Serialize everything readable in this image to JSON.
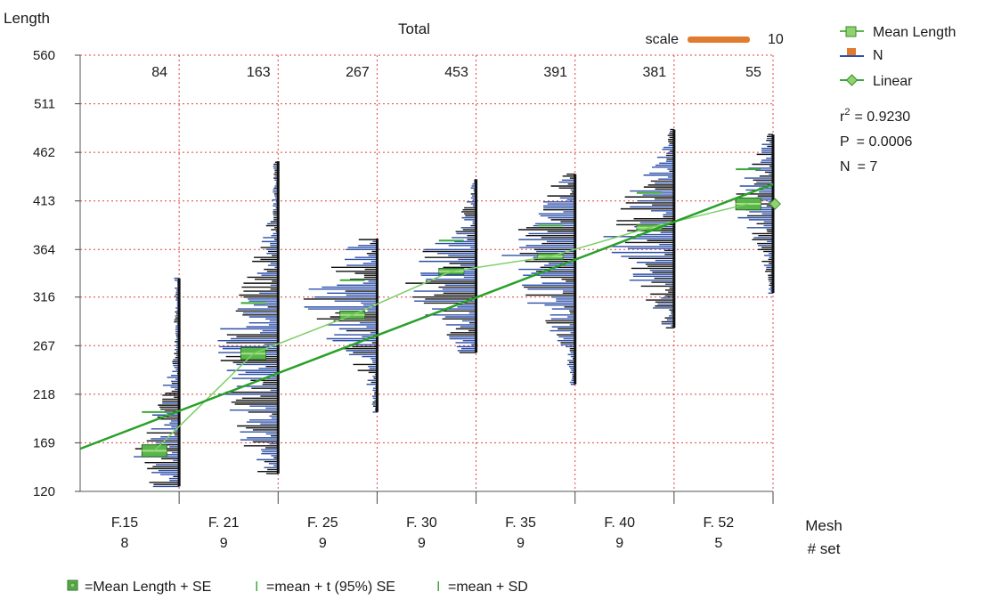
{
  "chart_data": {
    "type": "scatter",
    "title": "Total",
    "ylabel": "Length",
    "xlabel": "Mesh",
    "xlabel2": "# set",
    "y_ticks": [
      "560",
      "511",
      "462",
      "413",
      "364",
      "316",
      "267",
      "218",
      "169",
      "120"
    ],
    "ylim": [
      120,
      560
    ],
    "grid": true,
    "scale": {
      "label": "scale",
      "value": "10",
      "color": "#e07b30"
    },
    "groups": [
      {
        "mesh": "F.15",
        "sets": "8",
        "n_label": "84",
        "mean": 161,
        "se_low": 155,
        "se_high": 167,
        "sd_high": 200,
        "dist_min": 125,
        "dist_max": 335,
        "peak": 155
      },
      {
        "mesh": "F. 21",
        "sets": "9",
        "n_label": "163",
        "mean": 259,
        "se_low": 253,
        "se_high": 265,
        "sd_high": 310,
        "dist_min": 138,
        "dist_max": 453,
        "peak": 250
      },
      {
        "mesh": "F. 25",
        "sets": "9",
        "n_label": "267",
        "mean": 298,
        "se_low": 294,
        "se_high": 302,
        "sd_high": 333,
        "dist_min": 200,
        "dist_max": 375,
        "peak": 310
      },
      {
        "mesh": "F. 30",
        "sets": "9",
        "n_label": "453",
        "mean": 342,
        "se_low": 339,
        "se_high": 345,
        "sd_high": 373,
        "dist_min": 260,
        "dist_max": 435,
        "peak": 330
      },
      {
        "mesh": "F. 35",
        "sets": "9",
        "n_label": "391",
        "mean": 357,
        "se_low": 354,
        "se_high": 360,
        "sd_high": 388,
        "dist_min": 228,
        "dist_max": 440,
        "peak": 355
      },
      {
        "mesh": "F. 40",
        "sets": "9",
        "n_label": "381",
        "mean": 386,
        "se_low": 383,
        "se_high": 389,
        "sd_high": 421,
        "dist_min": 285,
        "dist_max": 485,
        "peak": 378
      },
      {
        "mesh": "F. 52",
        "sets": "5",
        "n_label": "55",
        "mean": 410,
        "se_low": 404,
        "se_high": 416,
        "sd_high": 445,
        "dist_min": 320,
        "dist_max": 480,
        "peak": 410
      }
    ],
    "linear_fit": {
      "y_start": 163,
      "y_end": 430
    },
    "legend": [
      {
        "label": "Mean Length",
        "color": "#5ab64a"
      },
      {
        "label": "N",
        "color": "#2d4fa8"
      },
      {
        "label": "Linear",
        "color": "#3aa83a"
      }
    ],
    "stats": [
      {
        "label": "r",
        "sup": "2",
        "value": "= 0.9230"
      },
      {
        "label": "P",
        "sup": "",
        "value": "= 0.0006"
      },
      {
        "label": "N",
        "sup": "",
        "value": "= 7"
      }
    ],
    "footer_legend": [
      {
        "marker": "box",
        "text": "=Mean Length + SE"
      },
      {
        "marker": "I",
        "text": "=mean + t (95%) SE"
      },
      {
        "marker": "I",
        "text": "=mean + SD"
      }
    ],
    "colors": {
      "grid": "#e04040",
      "hist_dark": "#111111",
      "hist_blue": "#2d4fa8",
      "mean_box": "#5ab64a",
      "line": "#2aa02a"
    }
  }
}
